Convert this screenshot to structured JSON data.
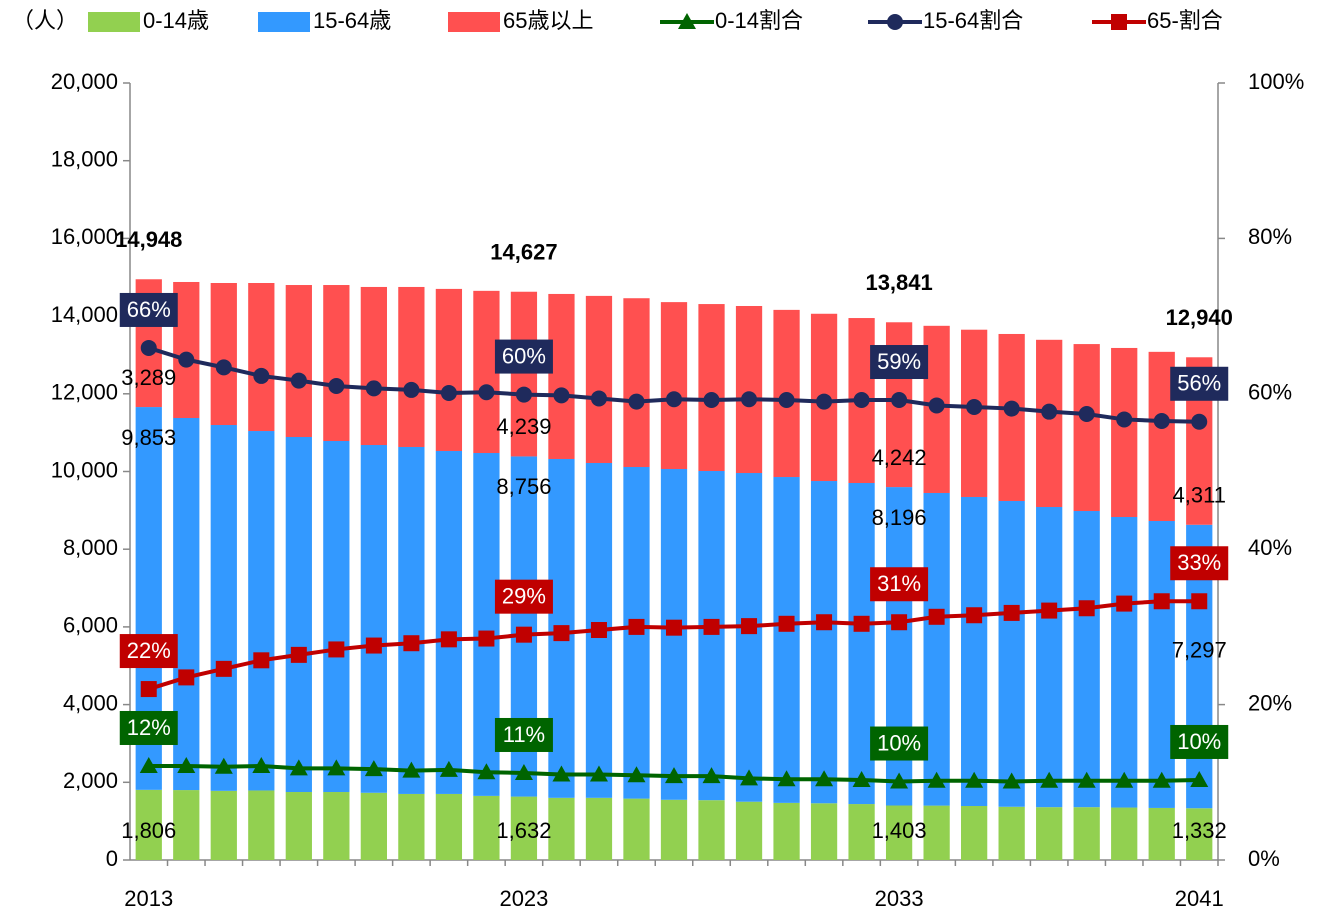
{
  "chart_data": {
    "type": "stacked-bar-line",
    "y_label": "（人）",
    "categories": [
      "2013",
      null,
      null,
      null,
      null,
      null,
      null,
      null,
      null,
      null,
      "2023",
      null,
      null,
      null,
      null,
      null,
      null,
      null,
      null,
      null,
      "2033",
      null,
      null,
      null,
      null,
      null,
      null,
      null,
      "2041"
    ],
    "ylim": [
      0,
      20000
    ],
    "yticks": [
      0,
      {
        "value": 2000,
        "label": "2,000"
      },
      {
        "value": 4000,
        "label": "4,000"
      },
      {
        "value": 6000,
        "label": "6,000"
      },
      {
        "value": 8000,
        "label": "8,000"
      },
      {
        "value": 10000,
        "label": "10,000"
      },
      {
        "value": 12000,
        "label": "12,000"
      },
      {
        "value": 14000,
        "label": "14,000"
      },
      {
        "value": 16000,
        "label": "16,000"
      },
      {
        "value": 18000,
        "label": "18,000"
      },
      {
        "value": 20000,
        "label": "20,000"
      }
    ],
    "y2lim": [
      0,
      100
    ],
    "y2ticks": [
      {
        "value": 0,
        "label": "0%"
      },
      {
        "value": 20,
        "label": "20%"
      },
      {
        "value": 40,
        "label": "40%"
      },
      {
        "value": 60,
        "label": "60%"
      },
      {
        "value": 80,
        "label": "80%"
      },
      {
        "value": 100,
        "label": "100%"
      }
    ],
    "series": [
      {
        "name": "0-14歳",
        "type": "bar",
        "color": "#92d050",
        "values": [
          1806,
          1800,
          1780,
          1790,
          1750,
          1750,
          1730,
          1700,
          1700,
          1650,
          1632,
          1600,
          1600,
          1580,
          1550,
          1540,
          1500,
          1470,
          1460,
          1440,
          1403,
          1400,
          1390,
          1370,
          1360,
          1360,
          1350,
          1340,
          1332
        ],
        "value_labels": [
          "1,806",
          null,
          null,
          null,
          null,
          null,
          null,
          null,
          null,
          null,
          "1,632",
          null,
          null,
          null,
          null,
          null,
          null,
          null,
          null,
          null,
          "1,403",
          null,
          null,
          null,
          null,
          null,
          null,
          null,
          "1,332"
        ]
      },
      {
        "name": "15-64歳",
        "type": "bar",
        "color": "#3399ff",
        "values": [
          9853,
          9577,
          9417,
          9252,
          9138,
          9035,
          8952,
          8931,
          8828,
          8826,
          8756,
          8722,
          8619,
          8536,
          8514,
          8473,
          8461,
          8388,
          8295,
          8264,
          8196,
          8047,
          7954,
          7871,
          7726,
          7623,
          7479,
          7386,
          7297
        ],
        "value_labels": [
          "9,853",
          null,
          null,
          null,
          null,
          null,
          null,
          null,
          null,
          null,
          "8,756",
          null,
          null,
          null,
          null,
          null,
          null,
          null,
          null,
          null,
          "8,196",
          null,
          null,
          null,
          null,
          null,
          null,
          null,
          "7,297"
        ]
      },
      {
        "name": "65歳以上",
        "type": "bar",
        "color": "#ff5050",
        "values": [
          3289,
          3501,
          3655,
          3810,
          3912,
          4015,
          4068,
          4119,
          4172,
          4174,
          4239,
          4248,
          4301,
          4344,
          4296,
          4297,
          4299,
          4302,
          4305,
          4246,
          4242,
          4303,
          4306,
          4299,
          4304,
          4297,
          4351,
          4354,
          4311
        ],
        "value_labels": [
          "3,289",
          null,
          null,
          null,
          null,
          null,
          null,
          null,
          null,
          null,
          "4,239",
          null,
          null,
          null,
          null,
          null,
          null,
          null,
          null,
          null,
          "4,242",
          null,
          null,
          null,
          null,
          null,
          null,
          null,
          "4,311"
        ]
      },
      {
        "name": "0-14割合",
        "type": "line",
        "axis": "y2",
        "marker": "triangle",
        "color": "#006400",
        "values": [
          12.1,
          12.1,
          12.0,
          12.1,
          11.8,
          11.8,
          11.7,
          11.5,
          11.6,
          11.3,
          11.2,
          11.0,
          11.0,
          10.9,
          10.8,
          10.8,
          10.5,
          10.4,
          10.4,
          10.3,
          10.1,
          10.2,
          10.2,
          10.1,
          10.2,
          10.2,
          10.2,
          10.2,
          10.3
        ],
        "value_labels": [
          "12%",
          null,
          null,
          null,
          null,
          null,
          null,
          null,
          null,
          null,
          "11%",
          null,
          null,
          null,
          null,
          null,
          null,
          null,
          null,
          null,
          "10%",
          null,
          null,
          null,
          null,
          null,
          null,
          null,
          "10%"
        ]
      },
      {
        "name": "15-64割合",
        "type": "line",
        "axis": "y2",
        "marker": "circle",
        "color": "#1f2a5c",
        "values": [
          65.9,
          64.4,
          63.4,
          62.3,
          61.7,
          61.0,
          60.7,
          60.5,
          60.1,
          60.2,
          59.9,
          59.8,
          59.4,
          59.0,
          59.3,
          59.2,
          59.3,
          59.2,
          59.0,
          59.2,
          59.2,
          58.5,
          58.3,
          58.1,
          57.7,
          57.4,
          56.7,
          56.5,
          56.4
        ],
        "value_labels": [
          "66%",
          null,
          null,
          null,
          null,
          null,
          null,
          null,
          null,
          null,
          "60%",
          null,
          null,
          null,
          null,
          null,
          null,
          null,
          null,
          null,
          "59%",
          null,
          null,
          null,
          null,
          null,
          null,
          null,
          "56%"
        ]
      },
      {
        "name": "65-割合",
        "type": "line",
        "axis": "y2",
        "marker": "square",
        "color": "#c00000",
        "values": [
          22.0,
          23.5,
          24.6,
          25.7,
          26.4,
          27.1,
          27.6,
          27.9,
          28.4,
          28.5,
          29.0,
          29.2,
          29.6,
          30.0,
          29.9,
          30.0,
          30.1,
          30.4,
          30.6,
          30.4,
          30.6,
          31.3,
          31.5,
          31.8,
          32.1,
          32.4,
          33.0,
          33.3,
          33.3
        ],
        "value_labels": [
          "22%",
          null,
          null,
          null,
          null,
          null,
          null,
          null,
          null,
          null,
          "29%",
          null,
          null,
          null,
          null,
          null,
          null,
          null,
          null,
          null,
          "31%",
          null,
          null,
          null,
          null,
          null,
          null,
          null,
          "33%"
        ]
      }
    ],
    "totals": {
      "values": [
        14948,
        null,
        null,
        null,
        null,
        null,
        null,
        null,
        null,
        null,
        14627,
        null,
        null,
        null,
        null,
        null,
        null,
        null,
        null,
        null,
        13841,
        null,
        null,
        null,
        null,
        null,
        null,
        null,
        12940
      ],
      "value_labels": [
        "14,948",
        null,
        null,
        null,
        null,
        null,
        null,
        null,
        null,
        null,
        "14,627",
        null,
        null,
        null,
        null,
        null,
        null,
        null,
        null,
        null,
        "13,841",
        null,
        null,
        null,
        null,
        null,
        null,
        null,
        "12,940"
      ]
    }
  }
}
